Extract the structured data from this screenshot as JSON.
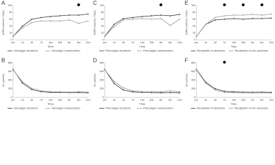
{
  "chart_data": [
    {
      "type": "line",
      "label": "A",
      "y_label": "eGFR (ml/min/1.73m2)",
      "x_label": "Time",
      "categories": [
        "pre",
        "1d",
        "3d",
        "7d",
        "14d",
        "30d",
        "3m",
        "6m",
        "12m"
      ],
      "ylim": [
        0,
        100
      ],
      "yticks": [
        0,
        20,
        40,
        60,
        80,
        100
      ],
      "significant_at": [
        7
      ],
      "series": [
        {
          "name": "Genotype secretors",
          "color": "#333333",
          "values": [
            10,
            40,
            60,
            65,
            68,
            70,
            72,
            72,
            75
          ]
        },
        {
          "name": "Genotype nonsecretors",
          "color": "#9a9a9a",
          "values": [
            10,
            35,
            50,
            55,
            55,
            55,
            58,
            48,
            55
          ]
        }
      ]
    },
    {
      "type": "line",
      "label": "C",
      "y_label": "eGFR (ml/min/1.73m2)",
      "x_label": "Time",
      "categories": [
        "pre",
        "1d",
        "3d",
        "7d",
        "14d",
        "30d",
        "3m",
        "6m",
        "12m"
      ],
      "ylim": [
        0,
        100
      ],
      "yticks": [
        0,
        20,
        40,
        60,
        80,
        100
      ],
      "significant_at": [
        6
      ],
      "series": [
        {
          "name": "Phenotype secretors",
          "color": "#333333",
          "values": [
            10,
            45,
            62,
            65,
            68,
            70,
            72,
            70,
            74
          ]
        },
        {
          "name": "Phenotype nonsecretors",
          "color": "#9a9a9a",
          "values": [
            10,
            38,
            58,
            60,
            62,
            60,
            62,
            42,
            60
          ]
        }
      ]
    },
    {
      "type": "line",
      "label": "E",
      "y_label": "eGFR (ml/min/1.73m2)",
      "x_label": "Time",
      "categories": [
        "pre",
        "1d",
        "3d",
        "7d",
        "14d",
        "30d",
        "3m",
        "6m",
        "12m"
      ],
      "ylim": [
        0,
        100
      ],
      "yticks": [
        0,
        20,
        40,
        60,
        80,
        100
      ],
      "significant_at": [
        3,
        5,
        7
      ],
      "series": [
        {
          "name": "Recipients of secretors",
          "color": "#333333",
          "values": [
            10,
            45,
            58,
            60,
            62,
            60,
            62,
            62,
            63
          ]
        },
        {
          "name": "Recipients of non-secretors",
          "color": "#9a9a9a",
          "values": [
            10,
            45,
            65,
            70,
            72,
            72,
            74,
            72,
            75
          ]
        }
      ]
    },
    {
      "type": "line",
      "label": "B",
      "y_label": "Scr (μmol/L)",
      "x_label": "Time",
      "categories": [
        "pre",
        "1d",
        "3d",
        "7d",
        "14d",
        "30d",
        "3m",
        "6m",
        "12m"
      ],
      "ylim": [
        0,
        800
      ],
      "yticks": [
        0,
        200,
        400,
        600,
        800
      ],
      "significant_at": [],
      "series": [
        {
          "name": "Genotype secretors",
          "color": "#333333",
          "values": [
            650,
            330,
            180,
            130,
            115,
            110,
            108,
            110,
            105
          ]
        },
        {
          "name": "Genotype nonsecretors",
          "color": "#9a9a9a",
          "values": [
            640,
            360,
            210,
            150,
            130,
            125,
            120,
            130,
            120
          ]
        }
      ]
    },
    {
      "type": "line",
      "label": "D",
      "y_label": "Scr (μmol/L)",
      "x_label": "Time",
      "categories": [
        "pre",
        "1d",
        "3d",
        "7d",
        "14d",
        "30d",
        "3m",
        "6m",
        "12m"
      ],
      "ylim": [
        0,
        800
      ],
      "yticks": [
        0,
        200,
        400,
        600,
        800
      ],
      "significant_at": [],
      "series": [
        {
          "name": "Phenotype secretors",
          "color": "#333333",
          "values": [
            650,
            320,
            170,
            125,
            112,
            108,
            105,
            110,
            105
          ]
        },
        {
          "name": "Phenotype nonsecretors",
          "color": "#9a9a9a",
          "values": [
            640,
            370,
            220,
            150,
            135,
            130,
            125,
            150,
            125
          ]
        }
      ]
    },
    {
      "type": "line",
      "label": "F",
      "y_label": "Scr (μmol/L)",
      "x_label": "Time",
      "categories": [
        "pre",
        "1d",
        "3d",
        "7d",
        "14d",
        "30d",
        "3m",
        "6m",
        "12m"
      ],
      "ylim": [
        0,
        800
      ],
      "yticks": [
        0,
        200,
        400,
        600,
        800
      ],
      "significant_at": [
        3
      ],
      "series": [
        {
          "name": "Recipients of secretors",
          "color": "#333333",
          "values": [
            650,
            350,
            200,
            140,
            125,
            120,
            118,
            120,
            115
          ]
        },
        {
          "name": "Recipients of non-secretors",
          "color": "#9a9a9a",
          "values": [
            640,
            330,
            170,
            115,
            108,
            105,
            102,
            105,
            100
          ]
        }
      ]
    }
  ]
}
